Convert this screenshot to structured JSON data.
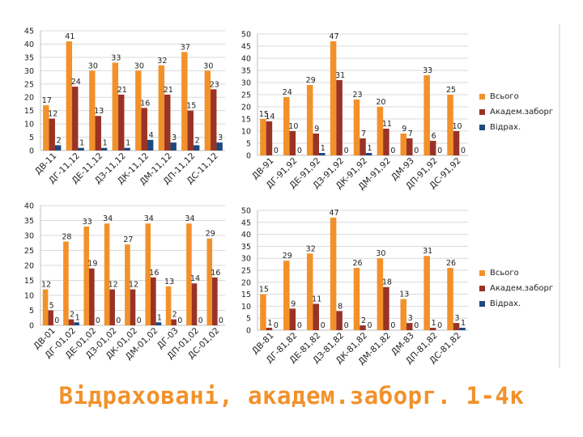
{
  "slide_title": "Відраховані, академ.заборг. 1-4к",
  "colors": {
    "Всього": "#f2912a",
    "Академ.заборг": "#993326",
    "Відрах.": "#1f497d"
  },
  "legends": [
    {
      "items": [
        "Всього",
        "Академ.заборг",
        "Відрах."
      ]
    },
    {
      "items": [
        "Всього",
        "Академ.заборг",
        "Відрах."
      ]
    }
  ],
  "chart_data": [
    {
      "type": "bar",
      "categories": [
        "ДВ-11",
        "ДГ-11,12",
        "ДЕ-11,12",
        "ДЗ-11,12",
        "ДК-11,12",
        "ДМ-11,12",
        "ДП-11,12",
        "ДС-11,12"
      ],
      "series": [
        {
          "name": "Всього",
          "values": [
            17,
            41,
            30,
            33,
            30,
            32,
            37,
            30
          ]
        },
        {
          "name": "Академ.заборг",
          "values": [
            12,
            24,
            13,
            21,
            16,
            21,
            15,
            23
          ]
        },
        {
          "name": "Відрах.",
          "values": [
            2,
            1,
            1,
            1,
            4,
            3,
            2,
            3
          ]
        }
      ],
      "ylim": [
        0,
        45
      ],
      "yticks": [
        0,
        5,
        10,
        15,
        20,
        25,
        30,
        35,
        40,
        45
      ]
    },
    {
      "type": "bar",
      "categories": [
        "ДВ-91",
        "ДГ-91,92",
        "ДЕ-91,92",
        "ДЗ-91,92",
        "ДК-91,92",
        "ДМ-91,92",
        "ДМ-93",
        "ДП-91,92",
        "ДС-91,92"
      ],
      "series": [
        {
          "name": "Всього",
          "values": [
            15,
            24,
            29,
            47,
            23,
            20,
            9,
            33,
            25
          ]
        },
        {
          "name": "Академ.заборг",
          "values": [
            14,
            10,
            9,
            31,
            7,
            11,
            7,
            6,
            10
          ]
        },
        {
          "name": "Відрах.",
          "values": [
            0,
            0,
            1,
            0,
            1,
            0,
            0,
            0,
            0
          ]
        }
      ],
      "ylim": [
        0,
        50
      ],
      "yticks": [
        0,
        5,
        10,
        15,
        20,
        25,
        30,
        35,
        40,
        45,
        50
      ]
    },
    {
      "type": "bar",
      "categories": [
        "ДВ-01",
        "ДГ-01,02",
        "ДЕ-01,02",
        "ДЗ-01,02",
        "ДК-01,02",
        "ДМ-01,02",
        "ДГ-03",
        "ДП-01,02",
        "ДС-01,02"
      ],
      "series": [
        {
          "name": "Всього",
          "values": [
            12,
            28,
            33,
            34,
            27,
            34,
            13,
            34,
            29
          ]
        },
        {
          "name": "Академ.заборг",
          "values": [
            5,
            2,
            19,
            12,
            12,
            16,
            2,
            14,
            16
          ]
        },
        {
          "name": "Відрах.",
          "values": [
            0,
            1,
            0,
            0,
            0,
            1,
            0,
            0,
            0
          ]
        }
      ],
      "ylim": [
        0,
        40
      ],
      "yticks": [
        0,
        5,
        10,
        15,
        20,
        25,
        30,
        35,
        40
      ]
    },
    {
      "type": "bar",
      "categories": [
        "ДВ-81",
        "ДГ-81,82",
        "ДЕ-81,82",
        "ДЗ-81,82",
        "ДК-81,82",
        "ДМ-81,82",
        "ДМ-83",
        "ДП-81,82",
        "ДС-81,82"
      ],
      "series": [
        {
          "name": "Всього",
          "values": [
            15,
            29,
            32,
            47,
            26,
            30,
            13,
            31,
            26
          ]
        },
        {
          "name": "Академ.заборг",
          "values": [
            1,
            9,
            11,
            8,
            2,
            18,
            3,
            1,
            3
          ]
        },
        {
          "name": "Відрах.",
          "values": [
            0,
            0,
            0,
            0,
            0,
            0,
            0,
            0,
            1
          ]
        }
      ],
      "ylim": [
        0,
        50
      ],
      "yticks": [
        0,
        5,
        10,
        15,
        20,
        25,
        30,
        35,
        40,
        45,
        50
      ]
    }
  ]
}
